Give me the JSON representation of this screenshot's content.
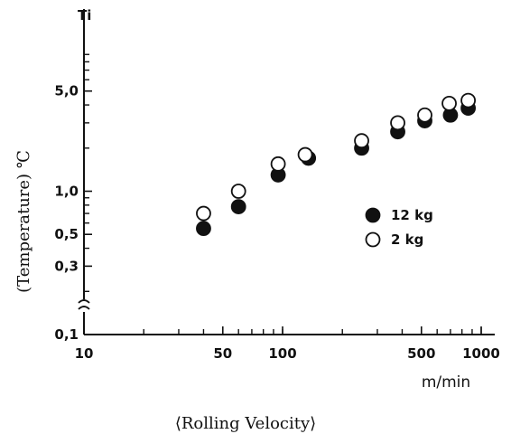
{
  "chart_data": {
    "type": "scatter",
    "x_scale": "log",
    "y_scale": "log",
    "xlim": [
      10,
      1000
    ],
    "ylim": [
      0.1,
      10
    ],
    "y_axis_break": true,
    "x_ticks": [
      {
        "value": 10,
        "label": "10"
      },
      {
        "value": 50,
        "label": "50"
      },
      {
        "value": 100,
        "label": "100"
      },
      {
        "value": 500,
        "label": "500"
      },
      {
        "value": 1000,
        "label": "1000"
      }
    ],
    "y_ticks": [
      {
        "value": 0.1,
        "label": "0,1"
      },
      {
        "value": 0.3,
        "label": "0,3"
      },
      {
        "value": 0.5,
        "label": "0,5"
      },
      {
        "value": 1.0,
        "label": "1,0"
      },
      {
        "value": 5.0,
        "label": "5,0"
      }
    ],
    "y_top_label": "Ti",
    "ylabel": "(Temperature) ℃",
    "x_unit": "m/min",
    "xlabel": "⟨Rolling Velocity⟩",
    "series": [
      {
        "name": "12 kg",
        "marker": "filled-circle",
        "points": [
          {
            "x": 40,
            "y": 0.55
          },
          {
            "x": 60,
            "y": 0.78
          },
          {
            "x": 95,
            "y": 1.3
          },
          {
            "x": 135,
            "y": 1.7
          },
          {
            "x": 250,
            "y": 2.0
          },
          {
            "x": 380,
            "y": 2.6
          },
          {
            "x": 520,
            "y": 3.1
          },
          {
            "x": 700,
            "y": 3.4
          },
          {
            "x": 860,
            "y": 3.8
          }
        ]
      },
      {
        "name": "2 kg",
        "marker": "open-circle",
        "points": [
          {
            "x": 40,
            "y": 0.7
          },
          {
            "x": 60,
            "y": 1.0
          },
          {
            "x": 95,
            "y": 1.55
          },
          {
            "x": 130,
            "y": 1.8
          },
          {
            "x": 250,
            "y": 2.25
          },
          {
            "x": 380,
            "y": 3.0
          },
          {
            "x": 520,
            "y": 3.4
          },
          {
            "x": 690,
            "y": 4.1
          },
          {
            "x": 860,
            "y": 4.3
          }
        ]
      }
    ]
  }
}
